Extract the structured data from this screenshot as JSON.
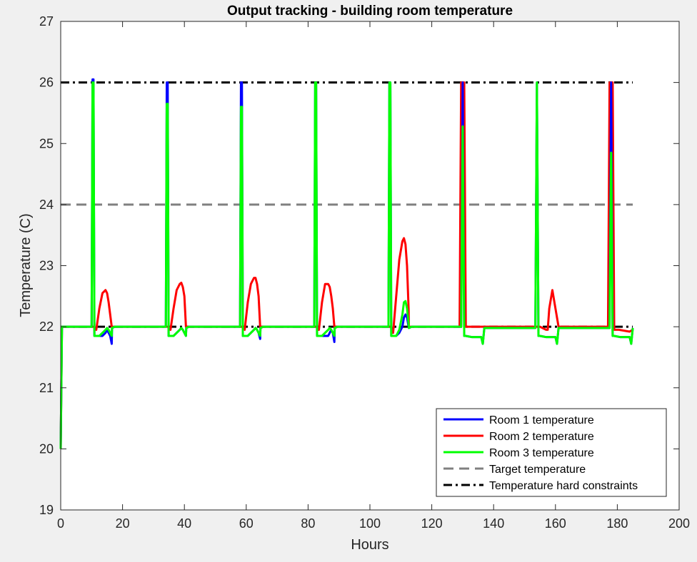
{
  "chart_data": {
    "type": "line",
    "title": "Output tracking - building room temperature",
    "xlabel": "Hours",
    "ylabel": "Temperature (C)",
    "xlim": [
      0,
      200
    ],
    "ylim": [
      19,
      27
    ],
    "xticks": [
      0,
      20,
      40,
      60,
      80,
      100,
      120,
      140,
      160,
      180,
      200
    ],
    "yticks": [
      19,
      20,
      21,
      22,
      23,
      24,
      25,
      26,
      27
    ],
    "grid": false,
    "legend_position": "bottom-right",
    "series": [
      {
        "name": "Room 1 temperature",
        "color": "#0000ff",
        "style": "solid",
        "x": [
          0,
          0.4,
          10.0,
          10.3,
          10.6,
          10.9,
          11.5,
          12.5,
          13.5,
          14.5,
          15.0,
          15.5,
          16.0,
          16.5,
          16.6,
          17.5,
          34.0,
          34.3,
          34.6,
          34.9,
          35.5,
          36.5,
          37.5,
          38.5,
          39.0,
          39.5,
          40.0,
          40.5,
          40.6,
          41.5,
          58.0,
          58.3,
          58.6,
          58.9,
          59.5,
          60.5,
          61.5,
          62.5,
          63.0,
          63.5,
          64.0,
          64.5,
          64.6,
          65.5,
          82.0,
          82.3,
          82.6,
          82.9,
          83.5,
          84.5,
          85.5,
          86.5,
          87.0,
          87.5,
          88.0,
          88.5,
          88.6,
          89.5,
          106.0,
          106.3,
          106.6,
          106.9,
          107.5,
          108.5,
          109.5,
          110.5,
          111.0,
          111.5,
          112.0,
          112.5,
          112.6,
          113.5,
          129.5,
          130.0,
          130.5,
          131.0,
          133.0,
          136.0,
          136.5,
          137.0,
          137.1,
          153.5,
          154.0,
          154.5,
          155.0,
          157.0,
          160.0,
          160.5,
          161.0,
          161.1,
          177.5,
          178.0,
          178.5,
          179.0,
          181.0,
          184.0,
          184.5,
          185.0
        ],
        "y": [
          20.0,
          22.0,
          22.0,
          26.05,
          26.05,
          21.85,
          21.85,
          21.85,
          21.85,
          21.9,
          21.95,
          21.9,
          21.85,
          21.72,
          21.98,
          22.0,
          22.0,
          26.0,
          26.0,
          21.85,
          21.85,
          21.85,
          21.9,
          21.95,
          21.98,
          21.95,
          21.9,
          21.85,
          21.98,
          22.0,
          22.0,
          26.0,
          26.0,
          21.85,
          21.85,
          21.85,
          21.9,
          21.95,
          21.98,
          21.95,
          21.9,
          21.8,
          21.98,
          22.0,
          22.0,
          26.0,
          26.0,
          21.85,
          21.85,
          21.85,
          21.85,
          21.85,
          21.9,
          21.95,
          21.9,
          21.75,
          21.98,
          22.0,
          22.0,
          26.0,
          26.0,
          21.85,
          21.85,
          21.85,
          21.9,
          22.0,
          22.15,
          22.2,
          22.15,
          22.0,
          21.98,
          22.0,
          22.0,
          26.0,
          21.85,
          21.85,
          21.83,
          21.83,
          21.72,
          21.98,
          21.98,
          21.98,
          26.0,
          21.85,
          21.85,
          21.83,
          21.83,
          21.72,
          21.98,
          21.98,
          21.98,
          26.0,
          21.85,
          21.85,
          21.83,
          21.83,
          21.72,
          21.98
        ]
      },
      {
        "name": "Room 2 temperature",
        "color": "#ff0000",
        "style": "solid",
        "x": [
          0,
          0.4,
          10.0,
          10.3,
          10.6,
          10.9,
          11.5,
          12.5,
          13.5,
          14.5,
          15.0,
          15.5,
          16.0,
          16.5,
          16.6,
          17.5,
          34.0,
          34.3,
          34.6,
          34.9,
          35.5,
          36.5,
          37.5,
          38.5,
          39.0,
          39.5,
          40.0,
          40.5,
          40.6,
          41.5,
          58.0,
          58.3,
          58.6,
          58.9,
          59.5,
          60.5,
          61.5,
          62.5,
          63.0,
          63.5,
          64.0,
          64.5,
          64.6,
          65.5,
          82.0,
          82.3,
          82.6,
          82.9,
          83.5,
          84.5,
          85.5,
          86.5,
          87.0,
          87.5,
          88.0,
          88.5,
          88.6,
          89.5,
          106.0,
          106.3,
          106.6,
          106.9,
          107.5,
          108.5,
          109.5,
          110.5,
          111.0,
          111.5,
          112.0,
          112.5,
          112.6,
          113.5,
          129.0,
          129.5,
          130.0,
          130.5,
          131.0,
          136.0,
          136.5,
          137.0,
          137.1,
          153.5,
          154.0,
          154.5,
          155.0,
          157.0,
          157.5,
          158.0,
          159.0,
          160.0,
          161.0,
          161.2,
          177.0,
          177.5,
          178.0,
          178.5,
          179.0,
          180.5,
          184.0,
          185.0
        ],
        "y": [
          20.0,
          22.0,
          22.0,
          22.0,
          22.0,
          22.0,
          21.95,
          22.3,
          22.55,
          22.6,
          22.55,
          22.4,
          22.2,
          22.0,
          22.0,
          22.0,
          22.0,
          22.0,
          22.0,
          22.0,
          21.95,
          22.3,
          22.6,
          22.7,
          22.72,
          22.65,
          22.5,
          22.0,
          22.0,
          22.0,
          22.0,
          22.0,
          22.0,
          22.0,
          21.95,
          22.4,
          22.7,
          22.8,
          22.8,
          22.7,
          22.5,
          22.0,
          22.0,
          22.0,
          22.0,
          22.0,
          22.0,
          22.0,
          21.95,
          22.4,
          22.7,
          22.7,
          22.65,
          22.5,
          22.3,
          22.0,
          22.0,
          22.0,
          22.0,
          22.0,
          22.0,
          22.0,
          21.9,
          22.5,
          23.1,
          23.4,
          23.45,
          23.35,
          23.0,
          22.3,
          22.0,
          22.0,
          22.0,
          26.0,
          26.0,
          26.0,
          22.0,
          22.0,
          22.0,
          22.0,
          22.0,
          22.0,
          22.0,
          22.0,
          22.0,
          21.95,
          21.95,
          22.3,
          22.6,
          22.3,
          22.0,
          22.0,
          22.0,
          26.0,
          26.0,
          26.0,
          21.95,
          21.95,
          21.92,
          21.95
        ]
      },
      {
        "name": "Room 3 temperature",
        "color": "#00ff00",
        "style": "solid",
        "x": [
          0,
          0.4,
          10.0,
          10.3,
          10.6,
          10.9,
          11.5,
          12.5,
          13.5,
          14.5,
          15.0,
          15.5,
          16.0,
          16.5,
          16.6,
          17.5,
          34.0,
          34.3,
          34.6,
          34.9,
          35.5,
          36.5,
          37.5,
          38.5,
          39.0,
          39.5,
          40.0,
          40.5,
          40.6,
          41.5,
          58.0,
          58.3,
          58.6,
          58.9,
          59.5,
          60.5,
          61.5,
          62.5,
          63.0,
          63.5,
          64.0,
          64.5,
          64.6,
          65.5,
          82.0,
          82.3,
          82.6,
          82.9,
          83.5,
          84.5,
          85.5,
          86.5,
          87.0,
          87.5,
          88.0,
          88.5,
          88.6,
          89.5,
          106.0,
          106.3,
          106.6,
          106.9,
          107.5,
          108.5,
          109.5,
          110.5,
          111.0,
          111.5,
          112.0,
          112.5,
          112.6,
          113.5,
          129.5,
          130.0,
          130.5,
          131.0,
          133.0,
          136.0,
          136.5,
          137.0,
          137.1,
          153.5,
          154.0,
          154.5,
          155.0,
          157.0,
          160.0,
          160.5,
          161.0,
          161.1,
          177.5,
          178.0,
          178.5,
          179.0,
          181.0,
          184.0,
          184.5,
          185.0
        ],
        "y": [
          20.0,
          22.0,
          22.0,
          26.0,
          26.0,
          21.85,
          21.85,
          21.85,
          21.9,
          21.95,
          21.98,
          21.95,
          21.9,
          21.85,
          21.98,
          22.0,
          22.0,
          25.65,
          25.65,
          21.85,
          21.85,
          21.85,
          21.9,
          21.95,
          21.98,
          21.95,
          21.9,
          21.85,
          21.98,
          22.0,
          22.0,
          25.6,
          25.6,
          21.85,
          21.85,
          21.85,
          21.9,
          21.95,
          21.98,
          21.95,
          21.9,
          21.85,
          21.98,
          22.0,
          22.0,
          26.0,
          26.0,
          21.85,
          21.85,
          21.85,
          21.9,
          21.95,
          21.98,
          21.95,
          21.9,
          21.85,
          21.98,
          22.0,
          22.0,
          26.0,
          26.0,
          21.85,
          21.85,
          21.85,
          21.95,
          22.2,
          22.4,
          22.42,
          22.3,
          22.05,
          21.98,
          22.0,
          22.0,
          25.28,
          21.85,
          21.85,
          21.83,
          21.83,
          21.72,
          21.98,
          21.98,
          21.98,
          26.0,
          21.85,
          21.85,
          21.83,
          21.83,
          21.72,
          21.98,
          21.98,
          21.98,
          24.85,
          21.85,
          21.85,
          21.83,
          21.83,
          21.72,
          21.98
        ]
      },
      {
        "name": "Target temperature",
        "color": "#808080",
        "style": "dashed",
        "x": [
          0,
          185
        ],
        "y": [
          24,
          24
        ]
      },
      {
        "name": "Temperature hard constraints",
        "color": "#000000",
        "style": "dashdot",
        "x": [
          0,
          185
        ],
        "y": [
          22,
          22
        ],
        "extra_y": 26
      }
    ]
  }
}
